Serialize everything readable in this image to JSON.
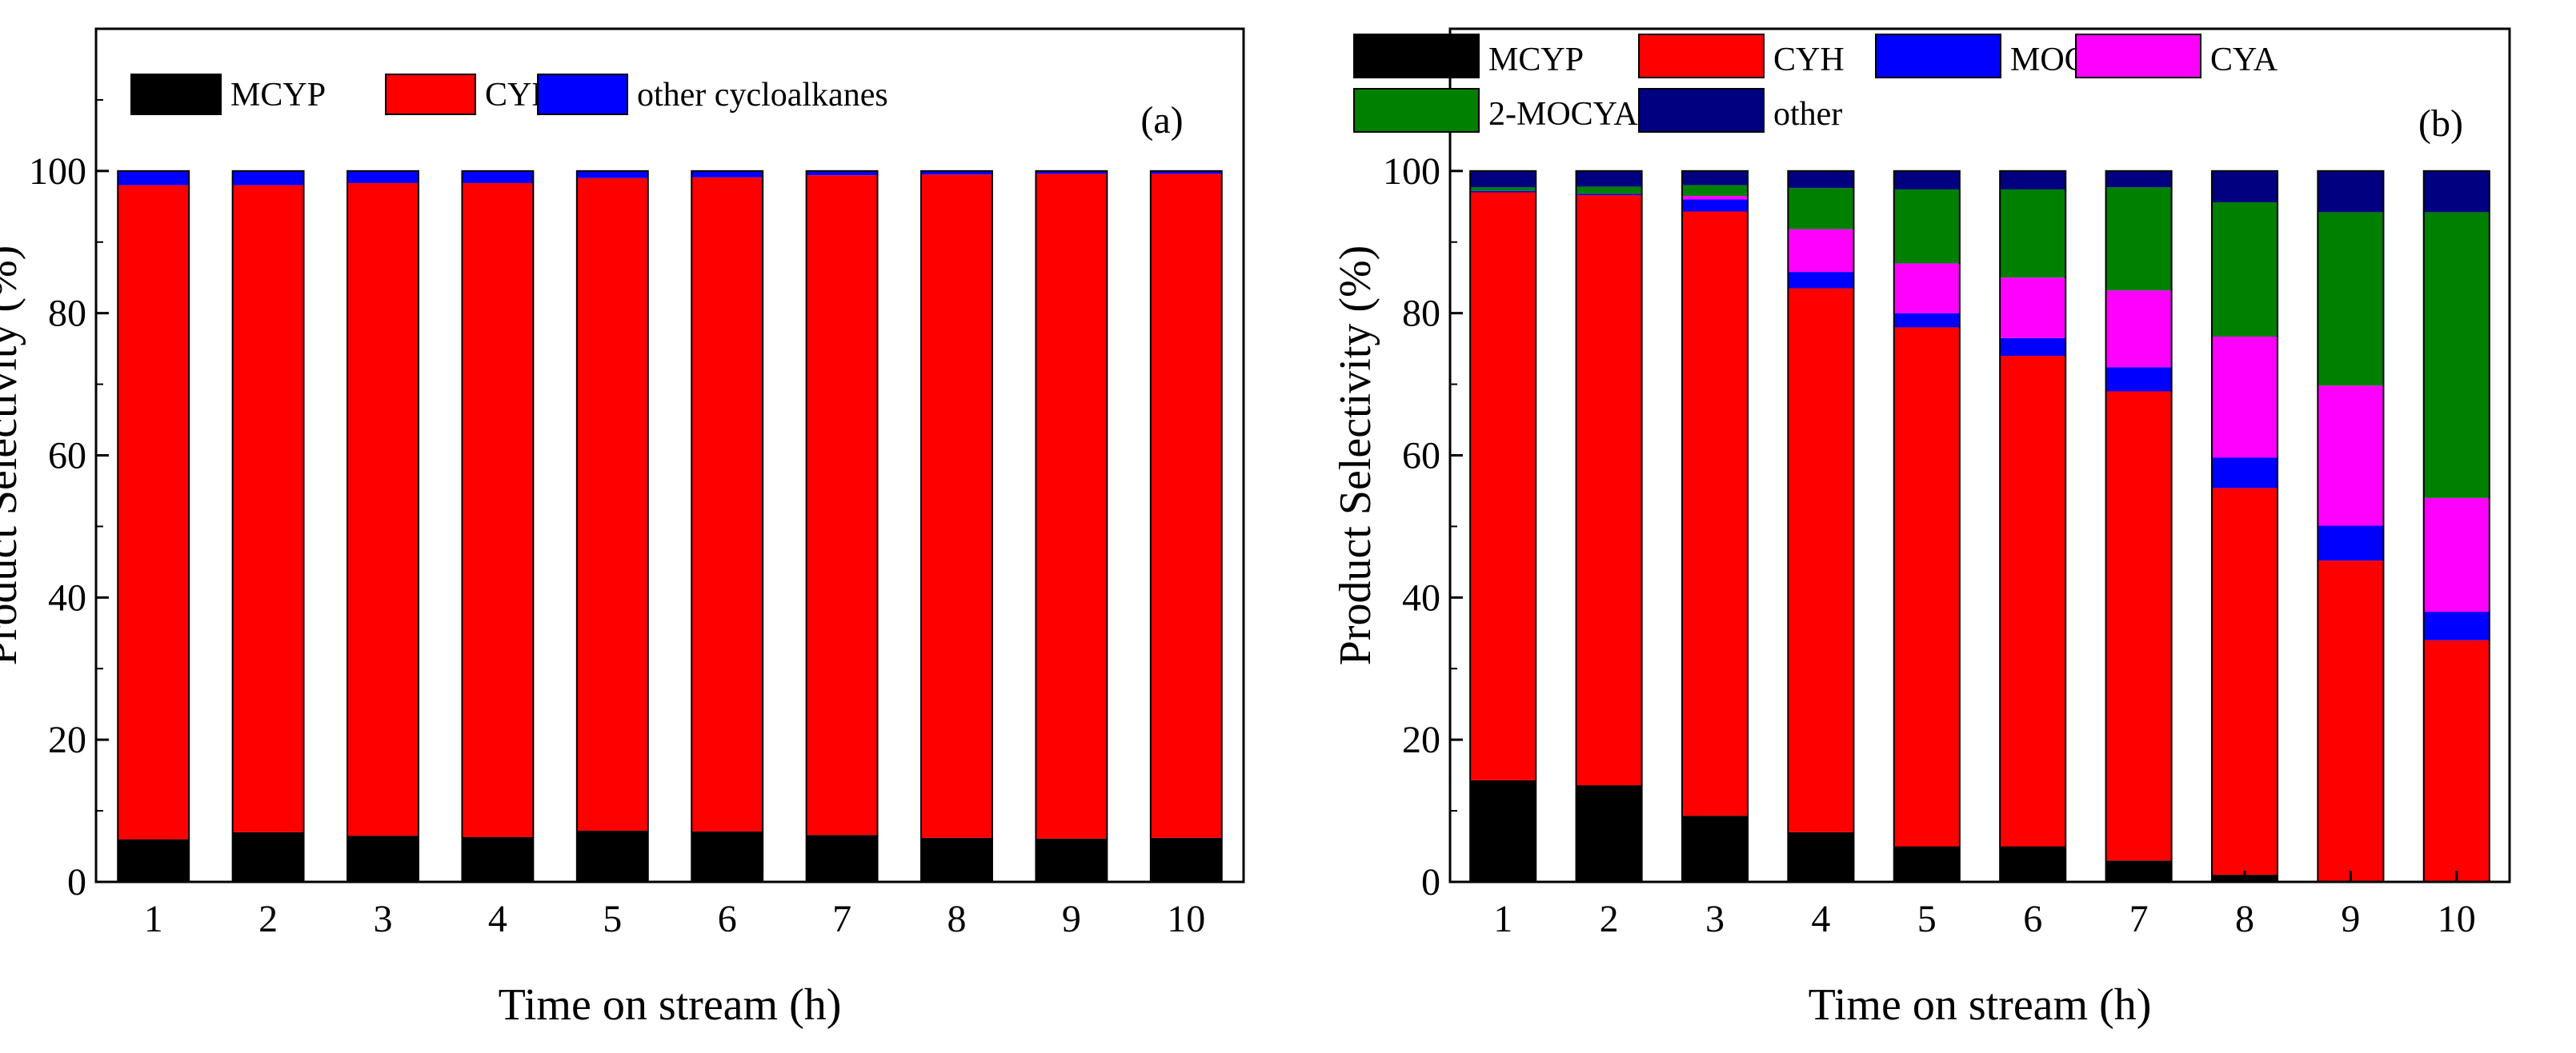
{
  "chart_data": [
    {
      "type": "bar",
      "stacked": true,
      "panel_label": "(a)",
      "xlabel": "Time on stream (h)",
      "ylabel": "Product Selectivity (%)",
      "ylim": [
        0,
        120
      ],
      "yticks": [
        0,
        20,
        40,
        60,
        80,
        100
      ],
      "categories": [
        "1",
        "2",
        "3",
        "4",
        "5",
        "6",
        "7",
        "8",
        "9",
        "10"
      ],
      "legend": {
        "placement": "top-left",
        "entries": [
          "MCYP",
          "CYH",
          "other cycloalkanes"
        ]
      },
      "series": [
        {
          "name": "MCYP",
          "color": "#000000",
          "values": [
            6.0,
            7.0,
            6.5,
            6.3,
            7.2,
            7.1,
            6.6,
            6.2,
            6.1,
            6.2
          ]
        },
        {
          "name": "CYH",
          "color": "#ff0000",
          "values": [
            92.0,
            91.0,
            91.8,
            92.0,
            91.8,
            92.0,
            92.8,
            93.3,
            93.5,
            93.4
          ]
        },
        {
          "name": "other cycloalkanes",
          "color": "#0000ff",
          "values": [
            2.0,
            2.0,
            1.7,
            1.7,
            1.0,
            0.9,
            0.6,
            0.5,
            0.4,
            0.4
          ]
        }
      ]
    },
    {
      "type": "bar",
      "stacked": true,
      "panel_label": "(b)",
      "xlabel": "Time on stream (h)",
      "ylabel": "Product Selectivity (%)",
      "ylim": [
        0,
        120
      ],
      "yticks": [
        0,
        20,
        40,
        60,
        80,
        100
      ],
      "categories": [
        "1",
        "2",
        "3",
        "4",
        "5",
        "6",
        "7",
        "8",
        "9",
        "10"
      ],
      "legend": {
        "placement": "top",
        "entries": [
          "MCYP",
          "CYH",
          "MOCYH",
          "CYA",
          "2-MOCYA",
          "other"
        ]
      },
      "series": [
        {
          "name": "MCYP",
          "color": "#000000",
          "values": [
            14.3,
            13.6,
            9.3,
            7.0,
            5.0,
            5.0,
            3.0,
            1.0,
            0.0,
            0.0
          ]
        },
        {
          "name": "CYH",
          "color": "#ff0000",
          "values": [
            82.7,
            83.0,
            85.0,
            76.5,
            73.0,
            69.0,
            66.0,
            54.4,
            45.2,
            34.0
          ]
        },
        {
          "name": "MOCYH",
          "color": "#0000ff",
          "values": [
            0.2,
            0.2,
            1.7,
            2.3,
            2.0,
            2.5,
            3.4,
            4.3,
            4.9,
            4.0
          ]
        },
        {
          "name": "CYA",
          "color": "#ff00ff",
          "values": [
            0.0,
            0.0,
            0.5,
            6.0,
            7.0,
            8.5,
            10.8,
            17.0,
            19.7,
            16.0
          ]
        },
        {
          "name": "2-MOCYA",
          "color": "#008000",
          "values": [
            0.5,
            1.0,
            1.5,
            5.8,
            10.4,
            12.4,
            14.5,
            18.9,
            24.4,
            40.2
          ]
        },
        {
          "name": "other",
          "color": "#000080",
          "values": [
            2.3,
            2.2,
            2.0,
            2.4,
            2.6,
            2.6,
            2.3,
            4.4,
            5.8,
            5.8
          ]
        }
      ]
    }
  ]
}
